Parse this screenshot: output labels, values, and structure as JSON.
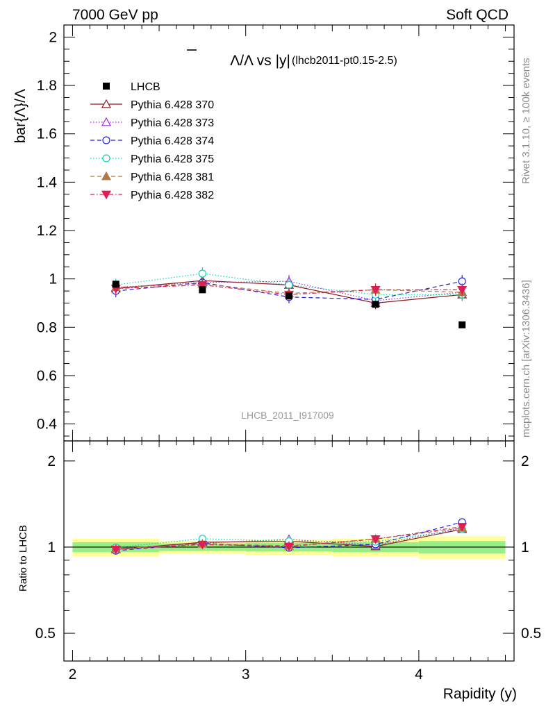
{
  "header": {
    "left": "7000 GeV pp",
    "right": "Soft QCD"
  },
  "side_labels": {
    "top": "Rivet 3.1.10, ≥ 100k events",
    "bottom": "mcplots.cern.ch [arXiv:1306.3436]"
  },
  "chart_data": {
    "type": "line",
    "title": "Λ̄/Λ vs |y|",
    "title_main": "Λ/Λ vs |y|",
    "title_sub": "(lhcb2011-pt0.15-2.5)",
    "watermark": "LHCB_2011_I917009",
    "xlabel": "Rapidity (y)",
    "ylabel": "bar{Λ}/Λ",
    "ratio_ylabel": "Ratio to LHCB",
    "xlim": [
      1.95,
      4.55
    ],
    "ylim": [
      0.33,
      2.05
    ],
    "ratio_ylim": [
      0.4,
      2.35
    ],
    "ratio_log_scale": true,
    "x_ticks": [
      "2",
      "3",
      "4"
    ],
    "y_ticks": [
      "0.4",
      "0.6",
      "0.8",
      "1",
      "1.2",
      "1.4",
      "1.6",
      "1.8",
      "2"
    ],
    "ratio_ticks": [
      "0.5",
      "1",
      "2"
    ],
    "legend_position": "top-left",
    "data": {
      "name": "LHCB",
      "x": [
        2.25,
        2.75,
        3.25,
        3.75,
        4.25
      ],
      "x_bins": [
        [
          2.0,
          2.5
        ],
        [
          2.5,
          3.0
        ],
        [
          3.0,
          3.5
        ],
        [
          3.5,
          4.0
        ],
        [
          4.0,
          4.5
        ]
      ],
      "y": [
        0.978,
        0.955,
        0.93,
        0.895,
        0.81
      ],
      "band_inner": [
        0.04,
        0.03,
        0.035,
        0.04,
        0.05
      ],
      "band_outer": [
        0.07,
        0.05,
        0.06,
        0.07,
        0.09
      ]
    },
    "series": [
      {
        "name": "Pythia 6.428 370",
        "color": "#8b1a1a",
        "dash": "",
        "marker": "triangle-up-open",
        "y": [
          0.96,
          0.993,
          0.975,
          0.9,
          0.935
        ]
      },
      {
        "name": "Pythia 6.428 373",
        "color": "#9a2bd8",
        "dash": "1.5,2.5",
        "marker": "triangle-up-open",
        "y": [
          0.965,
          0.985,
          0.99,
          0.91,
          0.945
        ]
      },
      {
        "name": "Pythia 6.428 374",
        "color": "#1f1fdf",
        "dash": "6,4",
        "marker": "circle-open",
        "y": [
          0.95,
          0.985,
          0.925,
          0.915,
          0.99
        ]
      },
      {
        "name": "Pythia 6.428 375",
        "color": "#14d0b4",
        "dash": "1.5,2.5",
        "marker": "circle-open",
        "y": [
          0.975,
          1.022,
          0.975,
          0.935,
          0.935
        ]
      },
      {
        "name": "Pythia 6.428 381",
        "color": "#b07a48",
        "dash": "6,4",
        "marker": "triangle-up-filled",
        "y": [
          0.965,
          0.98,
          0.94,
          0.955,
          0.945
        ]
      },
      {
        "name": "Pythia 6.428 382",
        "color": "#dd1f55",
        "dash": "6,3,1.5,3",
        "marker": "triangle-down-filled",
        "y": [
          0.96,
          0.975,
          0.935,
          0.955,
          0.955
        ]
      }
    ]
  }
}
